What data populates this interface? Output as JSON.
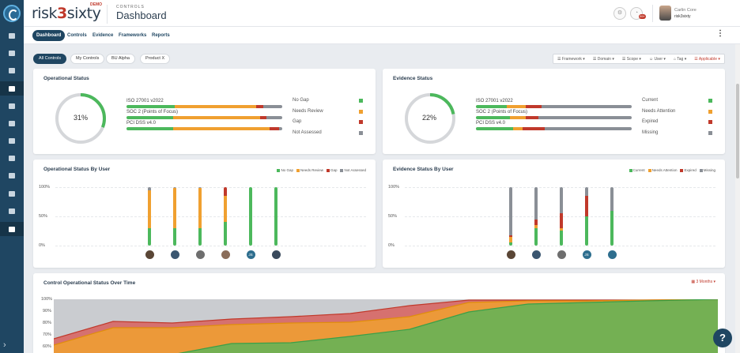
{
  "colors": {
    "green": "#4cb85c",
    "orange": "#f0a030",
    "red": "#c0392b",
    "gray": "#8a8f96",
    "navy": "#1f4662"
  },
  "header": {
    "brand_text_left": "risk",
    "brand_text_three": "3",
    "brand_text_right": "sixty",
    "brand_tag": "DEMO",
    "section_label": "CONTROLS",
    "page_title": "Dashboard",
    "user_name": "Carlin Core",
    "user_org": "risk3sixty",
    "notification_count": "99+"
  },
  "nav": {
    "tabs": [
      "Dashboard",
      "Controls",
      "Evidence",
      "Frameworks",
      "Reports"
    ],
    "active": 0
  },
  "filters": {
    "pills": [
      "All Controls",
      "My Controls",
      "BU Alpha",
      "Product X"
    ],
    "dropdowns": [
      "Framework",
      "Domain",
      "Scope",
      "User",
      "Tag"
    ],
    "applicable": "Applicable"
  },
  "operational_status": {
    "title": "Operational Status",
    "percent": "31%",
    "percent_value": 31,
    "rows": [
      {
        "label": "ISO 27001 v2022",
        "segments": [
          31,
          52,
          5,
          12
        ]
      },
      {
        "label": "SOC 2 (Points of Focus)",
        "segments": [
          30,
          56,
          4,
          10
        ]
      },
      {
        "label": "PCI DSS v4.0",
        "segments": [
          30,
          62,
          6,
          2
        ]
      }
    ],
    "legend": [
      "No Gap",
      "Needs Review",
      "Gap",
      "Not Assessed"
    ]
  },
  "evidence_status": {
    "title": "Evidence Status",
    "percent": "22%",
    "percent_value": 22,
    "rows": [
      {
        "label": "ISO 27001 v2022",
        "segments": [
          20,
          12,
          10,
          58
        ]
      },
      {
        "label": "SOC 2 (Points of Focus)",
        "segments": [
          22,
          10,
          8,
          60
        ]
      },
      {
        "label": "PCI DSS v4.0",
        "segments": [
          24,
          6,
          14,
          56
        ]
      }
    ],
    "legend": [
      "Current",
      "Needs Attention",
      "Expired",
      "Missing"
    ]
  },
  "operational_by_user": {
    "title": "Operational Status By User",
    "legend": [
      "No Gap",
      "Needs Review",
      "Gap",
      "Not Assessed"
    ],
    "y_ticks": [
      "100%",
      "50%",
      "0%"
    ],
    "users": [
      {
        "initials": "",
        "segments": [
          30,
          65,
          0,
          5
        ]
      },
      {
        "initials": "",
        "segments": [
          30,
          68,
          0,
          2
        ]
      },
      {
        "initials": "",
        "segments": [
          30,
          68,
          0,
          2
        ]
      },
      {
        "initials": "",
        "segments": [
          40,
          45,
          15,
          0
        ]
      },
      {
        "initials": "JS",
        "segments": [
          100,
          0,
          0,
          0
        ]
      },
      {
        "initials": "",
        "segments": [
          100,
          0,
          0,
          0
        ]
      }
    ]
  },
  "evidence_by_user": {
    "title": "Evidence Status By User",
    "legend": [
      "Current",
      "Needs Attention",
      "Expired",
      "Missing"
    ],
    "y_ticks": [
      "100%",
      "50%",
      "0%"
    ],
    "users": [
      {
        "initials": "",
        "segments": [
          5,
          10,
          2,
          83
        ]
      },
      {
        "initials": "",
        "segments": [
          30,
          5,
          10,
          55
        ]
      },
      {
        "initials": "",
        "segments": [
          25,
          5,
          25,
          45
        ]
      },
      {
        "initials": "JS",
        "segments": [
          50,
          0,
          35,
          15
        ]
      },
      {
        "initials": "",
        "segments": [
          60,
          0,
          0,
          40
        ]
      }
    ]
  },
  "over_time": {
    "title": "Control Operational Status Over Time",
    "range_label": "3 Months",
    "y_ticks": [
      "100%",
      "90%",
      "80%",
      "70%",
      "60%"
    ]
  }
}
